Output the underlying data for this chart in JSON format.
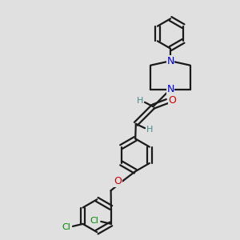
{
  "bg_color": "#e0e0e0",
  "bond_color": "#1a1a1a",
  "N_color": "#0000ee",
  "O_color": "#cc0000",
  "Cl_color": "#008800",
  "H_color": "#4a8a8a",
  "figsize": [
    3.0,
    3.0
  ],
  "dpi": 100,
  "xlim": [
    0,
    10
  ],
  "ylim": [
    0,
    10
  ]
}
